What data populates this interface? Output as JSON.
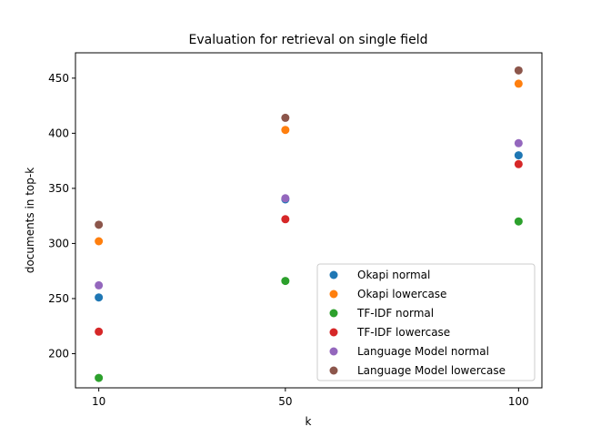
{
  "chart_data": {
    "type": "scatter",
    "title": "Evaluation for retrieval on single field",
    "xlabel": "k",
    "ylabel": "documents in top-k",
    "x_ticks": [
      10,
      50,
      100
    ],
    "y_ticks": [
      200,
      250,
      300,
      350,
      400,
      450
    ],
    "xlim": [
      5,
      105
    ],
    "ylim": [
      169,
      473
    ],
    "grid": false,
    "legend_position": "lower-right",
    "series": [
      {
        "name": "Okapi normal",
        "color": "#1f77b4",
        "x": [
          10,
          50,
          100
        ],
        "y": [
          251,
          340,
          380
        ]
      },
      {
        "name": "Okapi lowercase",
        "color": "#ff7f0e",
        "x": [
          10,
          50,
          100
        ],
        "y": [
          302,
          403,
          445
        ]
      },
      {
        "name": "TF-IDF normal",
        "color": "#2ca02c",
        "x": [
          10,
          50,
          100
        ],
        "y": [
          178,
          266,
          320
        ]
      },
      {
        "name": "TF-IDF lowercase",
        "color": "#d62728",
        "x": [
          10,
          50,
          100
        ],
        "y": [
          220,
          322,
          372
        ]
      },
      {
        "name": "Language Model normal",
        "color": "#9467bd",
        "x": [
          10,
          50,
          100
        ],
        "y": [
          262,
          341,
          391
        ]
      },
      {
        "name": "Language Model lowercase",
        "color": "#8c564b",
        "x": [
          10,
          50,
          100
        ],
        "y": [
          317,
          414,
          457
        ]
      }
    ]
  }
}
